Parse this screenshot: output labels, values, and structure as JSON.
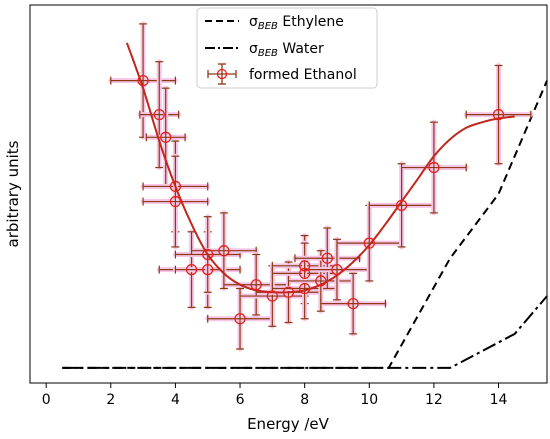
{
  "chart_data": {
    "type": "scatter",
    "xlabel": "Energy /eV",
    "ylabel": "arbitrary units",
    "xlim": [
      -0.5,
      15.5
    ],
    "ylim": [
      0,
      1
    ],
    "xticks": [
      "0",
      "2",
      "4",
      "6",
      "8",
      "10",
      "12",
      "14"
    ],
    "xtick_values": [
      0,
      2,
      4,
      6,
      8,
      10,
      12,
      14
    ],
    "grid": false,
    "legend_position": "top-center",
    "series": [
      {
        "name": "σBEB Ethylene",
        "legend_main": "σ",
        "legend_sub": "BEB",
        "legend_rest": " Ethylene",
        "kind": "line",
        "style": "dashed",
        "color": "#000000",
        "x": [
          0.5,
          10.6,
          12.5,
          14,
          15.5
        ],
        "y": [
          0.04,
          0.04,
          0.33,
          0.5,
          0.8
        ]
      },
      {
        "name": "σBEB Water",
        "legend_main": "σ",
        "legend_sub": "BEB",
        "legend_rest": " Water",
        "kind": "line",
        "style": "dashdot",
        "color": "#000000",
        "x": [
          0.5,
          12.5,
          14.5,
          15.5
        ],
        "y": [
          0.04,
          0.04,
          0.13,
          0.23
        ]
      },
      {
        "name": "formed Ethanol",
        "legend_main": "formed Ethanol",
        "legend_sub": "",
        "legend_rest": "",
        "kind": "errorbar",
        "color": "#e8201a",
        "errcolor": "#8b3a14",
        "points": [
          {
            "x": 3.0,
            "y": 0.8,
            "xerr": 1.0,
            "yerr": 0.15
          },
          {
            "x": 3.5,
            "y": 0.71,
            "xerr": 0.6,
            "yerr": 0.14
          },
          {
            "x": 3.7,
            "y": 0.65,
            "xerr": 0.6,
            "yerr": 0.13
          },
          {
            "x": 4.0,
            "y": 0.52,
            "xerr": 1.0,
            "yerr": 0.12
          },
          {
            "x": 4.0,
            "y": 0.48,
            "xerr": 1.0,
            "yerr": 0.12
          },
          {
            "x": 4.5,
            "y": 0.3,
            "xerr": 1.0,
            "yerr": 0.1
          },
          {
            "x": 5.0,
            "y": 0.3,
            "xerr": 1.0,
            "yerr": 0.1
          },
          {
            "x": 5.0,
            "y": 0.34,
            "xerr": 1.0,
            "yerr": 0.1
          },
          {
            "x": 5.5,
            "y": 0.35,
            "xerr": 1.0,
            "yerr": 0.1
          },
          {
            "x": 6.0,
            "y": 0.17,
            "xerr": 1.0,
            "yerr": 0.08
          },
          {
            "x": 6.5,
            "y": 0.26,
            "xerr": 1.0,
            "yerr": 0.08
          },
          {
            "x": 7.0,
            "y": 0.23,
            "xerr": 1.0,
            "yerr": 0.08
          },
          {
            "x": 7.5,
            "y": 0.24,
            "xerr": 1.0,
            "yerr": 0.08
          },
          {
            "x": 8.0,
            "y": 0.31,
            "xerr": 1.0,
            "yerr": 0.08
          },
          {
            "x": 8.0,
            "y": 0.29,
            "xerr": 1.0,
            "yerr": 0.08
          },
          {
            "x": 8.0,
            "y": 0.25,
            "xerr": 1.0,
            "yerr": 0.08
          },
          {
            "x": 8.5,
            "y": 0.27,
            "xerr": 1.0,
            "yerr": 0.08
          },
          {
            "x": 8.7,
            "y": 0.33,
            "xerr": 1.0,
            "yerr": 0.08
          },
          {
            "x": 9.0,
            "y": 0.3,
            "xerr": 1.0,
            "yerr": 0.08
          },
          {
            "x": 9.5,
            "y": 0.21,
            "xerr": 1.0,
            "yerr": 0.08
          },
          {
            "x": 10.0,
            "y": 0.37,
            "xerr": 1.0,
            "yerr": 0.1
          },
          {
            "x": 11.0,
            "y": 0.47,
            "xerr": 1.0,
            "yerr": 0.11
          },
          {
            "x": 12.0,
            "y": 0.57,
            "xerr": 1.0,
            "yerr": 0.12
          },
          {
            "x": 14.0,
            "y": 0.71,
            "xerr": 1.0,
            "yerr": 0.13
          }
        ],
        "fit": {
          "color": "#c0281c",
          "x": [
            2.5,
            3.0,
            3.5,
            4.0,
            4.5,
            5.0,
            5.5,
            6.0,
            6.5,
            7.0,
            7.5,
            8.0,
            8.5,
            9.0,
            9.5,
            10.0,
            10.5,
            11.0,
            11.5,
            12.0,
            12.5,
            13.0,
            13.5,
            14.0,
            14.5
          ],
          "y": [
            0.9,
            0.78,
            0.64,
            0.52,
            0.42,
            0.34,
            0.29,
            0.26,
            0.245,
            0.24,
            0.24,
            0.245,
            0.26,
            0.285,
            0.32,
            0.365,
            0.42,
            0.48,
            0.54,
            0.6,
            0.645,
            0.675,
            0.69,
            0.7,
            0.705
          ]
        }
      }
    ]
  }
}
